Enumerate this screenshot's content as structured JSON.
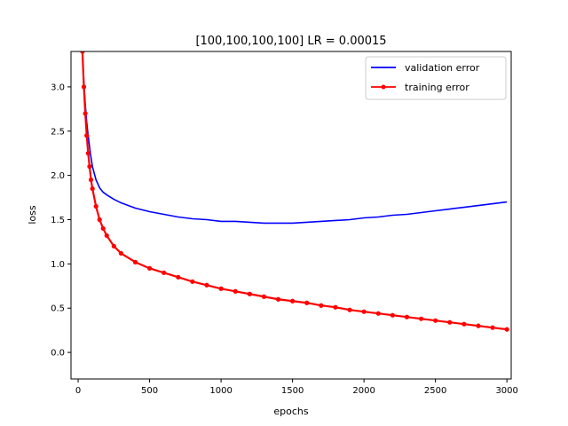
{
  "chart_data": {
    "type": "line",
    "title": "[100,100,100,100] LR = 0.00015",
    "xlabel": "epochs",
    "ylabel": "loss",
    "xlim": [
      -50,
      3030
    ],
    "ylim": [
      -0.3,
      3.4
    ],
    "xticks": [
      0,
      500,
      1000,
      1500,
      2000,
      2500,
      3000
    ],
    "yticks": [
      0.0,
      0.5,
      1.0,
      1.5,
      2.0,
      2.5,
      3.0
    ],
    "xtick_labels": [
      "0",
      "500",
      "1000",
      "1500",
      "2000",
      "2500",
      "3000"
    ],
    "ytick_labels": [
      "0.0",
      "0.5",
      "1.0",
      "1.5",
      "2.0",
      "2.5",
      "3.0"
    ],
    "grid": false,
    "legend_position": "top-right",
    "series": [
      {
        "name": "validation error",
        "color": "#0000ff",
        "marker": "none",
        "x": [
          30,
          40,
          50,
          60,
          70,
          80,
          90,
          100,
          125,
          150,
          175,
          200,
          250,
          300,
          400,
          500,
          600,
          700,
          800,
          900,
          1000,
          1100,
          1200,
          1300,
          1400,
          1500,
          1600,
          1700,
          1800,
          1900,
          2000,
          2100,
          2200,
          2300,
          2400,
          2500,
          2600,
          2700,
          2800,
          2900,
          3000
        ],
        "y": [
          3.35,
          3.05,
          2.8,
          2.6,
          2.45,
          2.32,
          2.2,
          2.1,
          1.95,
          1.86,
          1.81,
          1.78,
          1.73,
          1.69,
          1.63,
          1.59,
          1.56,
          1.53,
          1.51,
          1.5,
          1.48,
          1.48,
          1.47,
          1.46,
          1.46,
          1.46,
          1.47,
          1.48,
          1.49,
          1.5,
          1.52,
          1.53,
          1.55,
          1.56,
          1.58,
          1.6,
          1.62,
          1.64,
          1.66,
          1.68,
          1.7
        ]
      },
      {
        "name": "training error",
        "color": "#ff0000",
        "marker": "dot",
        "x": [
          30,
          40,
          50,
          60,
          70,
          80,
          90,
          100,
          125,
          150,
          175,
          200,
          250,
          300,
          400,
          500,
          600,
          700,
          800,
          900,
          1000,
          1100,
          1200,
          1300,
          1400,
          1500,
          1600,
          1700,
          1800,
          1900,
          2000,
          2100,
          2200,
          2300,
          2400,
          2500,
          2600,
          2700,
          2800,
          2900,
          3000
        ],
        "y": [
          3.4,
          3.0,
          2.7,
          2.45,
          2.25,
          2.1,
          1.95,
          1.85,
          1.65,
          1.5,
          1.4,
          1.32,
          1.2,
          1.12,
          1.02,
          0.95,
          0.9,
          0.85,
          0.8,
          0.76,
          0.72,
          0.69,
          0.66,
          0.63,
          0.6,
          0.58,
          0.56,
          0.53,
          0.51,
          0.48,
          0.46,
          0.44,
          0.42,
          0.4,
          0.38,
          0.36,
          0.34,
          0.32,
          0.3,
          0.28,
          0.26
        ]
      }
    ]
  }
}
